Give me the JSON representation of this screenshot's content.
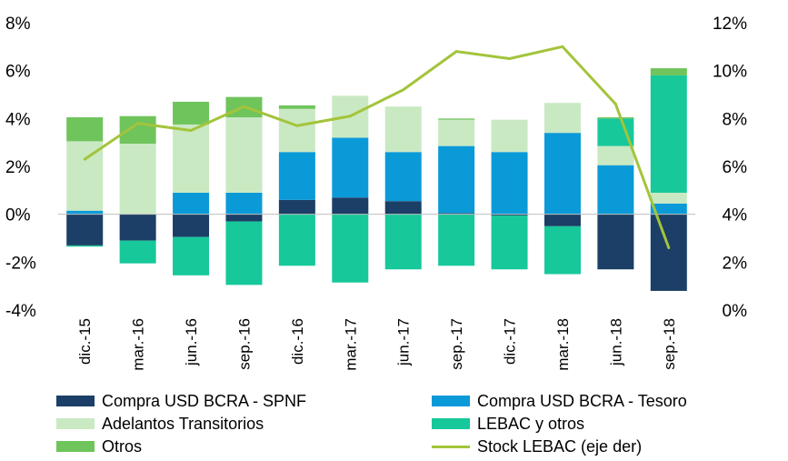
{
  "chart_data": {
    "type": "bar",
    "title": "",
    "xlabel": "",
    "ylabel": "",
    "categories": [
      "dic.-15",
      "mar.-16",
      "jun.-16",
      "sep.-16",
      "dic.-16",
      "mar.-17",
      "jun.-17",
      "sep.-17",
      "dic.-17",
      "mar.-18",
      "jun.-18",
      "sep.-18"
    ],
    "ylim": [
      -4,
      8
    ],
    "y2lim": [
      0,
      12
    ],
    "y_ticks": [
      "8%",
      "6%",
      "4%",
      "2%",
      "0%",
      "-2%",
      "-4%"
    ],
    "y2_ticks": [
      "12%",
      "10%",
      "8%",
      "6%",
      "4%",
      "2%",
      "0%"
    ],
    "stacked": true,
    "series": [
      {
        "name": "Compra USD BCRA - SPNF",
        "color": "#1b3f66",
        "values": [
          -1.3,
          -1.1,
          -0.95,
          -0.3,
          0.6,
          0.7,
          0.55,
          0.05,
          -0.05,
          -0.5,
          -2.3,
          -3.2
        ]
      },
      {
        "name": "Compra USD BCRA - Tesoro",
        "color": "#0b9ad8",
        "values": [
          0.15,
          0.0,
          0.9,
          0.9,
          2.0,
          2.5,
          2.05,
          2.8,
          2.6,
          3.4,
          2.05,
          0.45
        ]
      },
      {
        "name": "Adelantos Transitorios",
        "color": "#c9e9c3",
        "values": [
          2.9,
          2.95,
          2.85,
          3.15,
          1.8,
          1.75,
          1.9,
          1.1,
          1.35,
          1.25,
          0.8,
          0.45
        ]
      },
      {
        "name": "LEBAC y otros",
        "color": "#17c89a",
        "values": [
          -0.05,
          -0.95,
          -1.6,
          -2.65,
          -2.15,
          -2.85,
          -2.3,
          -2.15,
          -2.25,
          -2.0,
          1.15,
          4.9
        ]
      },
      {
        "name": "Otros",
        "color": "#6fc45c",
        "values": [
          1.0,
          1.15,
          0.95,
          0.85,
          0.15,
          0.0,
          0.0,
          0.05,
          0.0,
          0.0,
          0.05,
          0.3
        ]
      }
    ],
    "line": {
      "name": "Stock LEBAC (eje der)",
      "color": "#a3c43b",
      "axis": "right",
      "values": [
        6.3,
        7.8,
        7.5,
        8.5,
        7.7,
        8.1,
        9.2,
        10.8,
        10.5,
        11.0,
        8.6,
        2.6
      ]
    },
    "legend_position": "bottom"
  },
  "legend": {
    "items": [
      {
        "label": "Compra USD BCRA - SPNF",
        "color": "#1b3f66",
        "kind": "box"
      },
      {
        "label": "Compra USD BCRA - Tesoro",
        "color": "#0b9ad8",
        "kind": "box"
      },
      {
        "label": "Adelantos Transitorios",
        "color": "#c9e9c3",
        "kind": "box"
      },
      {
        "label": "LEBAC y otros",
        "color": "#17c89a",
        "kind": "box"
      },
      {
        "label": "Otros",
        "color": "#6fc45c",
        "kind": "box"
      },
      {
        "label": "Stock LEBAC (eje der)",
        "color": "#a3c43b",
        "kind": "line"
      }
    ]
  }
}
